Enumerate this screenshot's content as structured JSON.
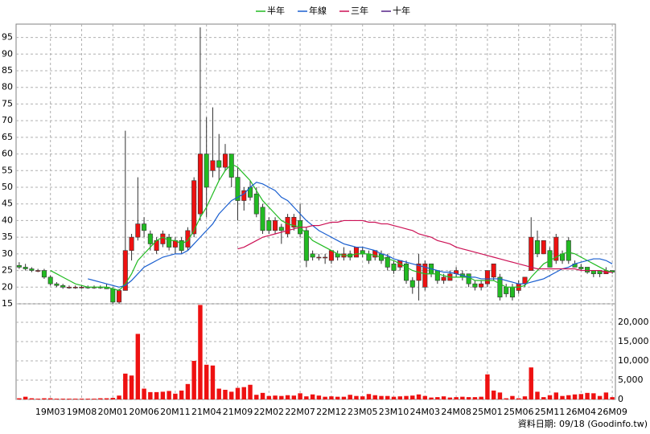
{
  "chart_data": {
    "type": "candlestick",
    "legend": [
      {
        "name": "半年",
        "color": "#22bb22"
      },
      {
        "name": "年線",
        "color": "#1a5fd0"
      },
      {
        "name": "三年",
        "color": "#cc1155"
      },
      {
        "name": "十年",
        "color": "#552288"
      }
    ],
    "categories": [
      null,
      null,
      null,
      null,
      null,
      "19M03",
      null,
      null,
      null,
      null,
      "19M08",
      null,
      null,
      null,
      null,
      "20M01",
      null,
      null,
      null,
      null,
      "20M06",
      null,
      null,
      null,
      null,
      "20M11",
      null,
      null,
      null,
      null,
      "21M04",
      null,
      null,
      null,
      null,
      "21M09",
      null,
      null,
      null,
      null,
      "22M02",
      null,
      null,
      null,
      null,
      "22M07",
      null,
      null,
      null,
      null,
      "22M12",
      null,
      null,
      null,
      null,
      "23M05",
      null,
      null,
      null,
      null,
      "23M10",
      null,
      null,
      null,
      null,
      "24M03",
      null,
      null,
      null,
      null,
      "24M08",
      null,
      null,
      null,
      null,
      "25M01",
      null,
      null,
      null,
      null,
      "25M06",
      null,
      null,
      null,
      null,
      "25M11",
      null,
      null,
      null,
      null,
      "26M04",
      null,
      null,
      null,
      null,
      "26M09"
    ],
    "open": [
      26.5,
      26,
      25.5,
      25,
      25,
      23,
      21,
      20.5,
      20,
      20,
      20,
      20,
      19.8,
      20,
      20,
      19.5,
      15.5,
      19,
      31,
      35,
      39,
      36,
      31,
      33,
      35,
      32,
      34,
      32,
      36,
      42,
      60,
      55,
      58,
      56,
      60,
      53,
      46,
      50,
      48,
      44,
      40,
      37,
      38,
      36,
      38,
      40,
      37,
      30,
      29,
      29,
      28,
      30,
      29,
      30,
      29,
      31,
      30,
      29,
      30,
      29,
      27,
      26,
      27,
      22,
      22,
      20,
      27,
      25,
      22,
      22,
      24,
      24,
      24,
      21,
      20,
      21,
      23,
      23,
      20,
      20,
      19,
      21,
      25,
      34,
      30,
      31,
      28,
      30,
      34,
      27,
      26,
      26,
      25,
      25,
      24,
      25
    ],
    "high": [
      27.5,
      27,
      26,
      25.5,
      25.5,
      23.5,
      21.5,
      21,
      20.5,
      20.5,
      20.5,
      20.5,
      20.5,
      20.5,
      21,
      20,
      19.5,
      67,
      36,
      53,
      41,
      37,
      35,
      37,
      36,
      35,
      35,
      38,
      53,
      98,
      71,
      74,
      66,
      63,
      60,
      56,
      50,
      52,
      50,
      45,
      41,
      41,
      39,
      42,
      42,
      45,
      38,
      31,
      30,
      30,
      31,
      31,
      32,
      31,
      32,
      32,
      31,
      31,
      31,
      30,
      28,
      28,
      28,
      23,
      30,
      28,
      27,
      25,
      24,
      25,
      26,
      25,
      24,
      22,
      22,
      25,
      27,
      24,
      21,
      21,
      22,
      23,
      41,
      37,
      34,
      32,
      36,
      31,
      35,
      28,
      27,
      26,
      25,
      25,
      26,
      25
    ],
    "low": [
      25.5,
      25,
      24.5,
      24.5,
      22.5,
      20.5,
      20,
      19.5,
      19.5,
      19.5,
      19.5,
      19.5,
      19.5,
      19.5,
      19.5,
      15,
      15,
      19,
      28,
      34,
      35,
      31,
      30,
      32,
      31,
      30,
      30,
      31,
      35,
      40,
      41,
      53,
      52,
      55,
      50,
      40,
      43,
      46,
      41,
      36,
      36,
      36,
      33,
      35,
      37,
      35,
      26,
      28,
      28,
      27,
      27,
      28,
      28,
      28,
      29,
      29,
      27,
      28,
      27,
      25,
      24,
      25,
      21,
      18,
      16,
      19,
      23,
      21,
      21,
      22,
      23,
      22,
      20,
      19,
      19,
      20,
      22,
      16,
      17,
      16,
      18,
      20,
      25,
      29,
      30,
      26,
      27,
      27,
      27,
      26,
      25,
      24,
      23,
      23,
      24,
      24
    ],
    "close": [
      26,
      25.5,
      25,
      25,
      23,
      21,
      20.5,
      20,
      20,
      20,
      20,
      19.8,
      20,
      19.8,
      19.5,
      15.5,
      19,
      31,
      35,
      39,
      37,
      33,
      34,
      36,
      32,
      34,
      31,
      37,
      52,
      60,
      50,
      58,
      56,
      60,
      53,
      46,
      49,
      47,
      42,
      37,
      37,
      40,
      37,
      41,
      41,
      36,
      28,
      29,
      29,
      29,
      31,
      29,
      30,
      29,
      32,
      30,
      28,
      31,
      28,
      26,
      25,
      28,
      22,
      20,
      27,
      27,
      24,
      22,
      23,
      24,
      25,
      23,
      21,
      20,
      21,
      25,
      27,
      17,
      18,
      17,
      21,
      23,
      35,
      30,
      34,
      26,
      35,
      28,
      28,
      26,
      25.5,
      24.5,
      24,
      24,
      25,
      24.5
    ],
    "volume": [
      300,
      700,
      300,
      200,
      300,
      300,
      200,
      200,
      200,
      200,
      200,
      200,
      200,
      300,
      300,
      400,
      1000,
      6700,
      6200,
      17000,
      2800,
      1900,
      1900,
      2000,
      2200,
      1500,
      2300,
      4000,
      10000,
      24500,
      9000,
      8800,
      2800,
      2500,
      2000,
      3000,
      3200,
      3800,
      1200,
      1700,
      900,
      1000,
      900,
      1100,
      1000,
      1600,
      800,
      1300,
      1000,
      700,
      800,
      700,
      700,
      1200,
      900,
      800,
      1400,
      1100,
      900,
      900,
      700,
      800,
      900,
      1000,
      1300,
      900,
      500,
      600,
      800,
      500,
      600,
      700,
      600,
      600,
      700,
      6500,
      2300,
      1800,
      300,
      900,
      300,
      800,
      8300,
      2000,
      600,
      1100,
      1800,
      900,
      1100,
      1300,
      1400,
      1700,
      1600,
      900,
      1800,
      600
    ],
    "up_color": "#ee1111",
    "down_color": "#22bb22",
    "volume_color": "#ee1111",
    "ma_series": [
      {
        "name": "半年",
        "color": "#22bb22",
        "values": [
          null,
          null,
          null,
          null,
          null,
          25,
          24,
          23,
          22,
          21,
          20.5,
          20,
          20,
          20,
          20,
          19.5,
          19,
          21,
          24,
          28,
          30,
          32,
          34,
          35,
          34,
          34,
          33,
          34,
          37,
          41,
          44,
          48,
          52,
          55,
          57,
          56,
          54,
          52,
          49,
          46,
          44,
          42,
          40,
          39,
          38.5,
          38,
          36,
          34,
          33,
          32,
          31,
          30,
          29.5,
          29.5,
          30,
          30,
          30,
          29.5,
          29,
          28.5,
          28,
          27,
          26,
          25,
          24.5,
          24,
          24,
          24,
          23.5,
          23,
          23,
          23,
          23,
          22,
          22,
          22,
          22,
          21,
          20,
          20,
          20,
          20.5,
          23,
          25,
          27,
          28,
          29,
          30,
          30.5,
          30,
          29,
          28,
          27,
          26,
          25,
          24.5
        ]
      },
      {
        "name": "年線",
        "color": "#1a5fd0",
        "values": [
          null,
          null,
          null,
          null,
          null,
          null,
          null,
          null,
          null,
          null,
          null,
          22.5,
          22,
          21.5,
          21,
          20.5,
          20,
          20.5,
          22,
          24,
          26,
          27,
          28,
          29,
          29.5,
          30,
          30,
          31,
          33,
          35,
          37,
          39,
          42,
          44,
          46,
          47,
          48,
          50,
          51.5,
          51,
          50,
          49,
          47,
          46,
          44,
          42,
          40,
          38.5,
          37,
          36,
          35,
          34,
          33,
          32.5,
          32,
          32,
          31.5,
          31,
          30,
          29.5,
          28.5,
          28,
          27.5,
          27,
          26.5,
          26,
          25.5,
          25,
          24.5,
          24.5,
          24,
          23.5,
          23,
          23,
          22.5,
          22.5,
          22.5,
          22.5,
          22,
          21.5,
          21,
          21,
          21.5,
          22,
          22.5,
          23.5,
          24.5,
          25.5,
          26,
          27,
          27.5,
          28,
          28.5,
          28.5,
          28,
          27
        ]
      },
      {
        "name": "三年",
        "color": "#cc1155",
        "values": [
          null,
          null,
          null,
          null,
          null,
          null,
          null,
          null,
          null,
          null,
          null,
          null,
          null,
          null,
          null,
          null,
          null,
          null,
          null,
          null,
          null,
          null,
          null,
          null,
          null,
          null,
          null,
          null,
          null,
          null,
          null,
          null,
          null,
          null,
          null,
          31.5,
          32,
          33,
          34,
          35,
          35.5,
          36,
          36.5,
          37,
          37.5,
          38,
          38,
          38.5,
          38.5,
          39,
          39.5,
          39.5,
          40,
          40,
          40,
          40,
          39.5,
          39.5,
          39,
          39,
          38.5,
          38,
          37.5,
          37,
          36,
          35.5,
          35,
          34,
          33.5,
          33,
          32,
          31.5,
          31,
          30.5,
          30,
          29.5,
          29,
          28.5,
          28,
          27.5,
          27,
          26.5,
          26,
          25.5,
          25.5,
          25.5,
          25.5,
          25.5,
          25.5,
          25.5,
          25,
          25,
          25,
          25,
          24.5,
          24.5
        ]
      }
    ],
    "ylim": [
      15,
      99
    ],
    "yticks": [
      15,
      20,
      25,
      30,
      35,
      40,
      45,
      50,
      55,
      60,
      65,
      70,
      75,
      80,
      85,
      90,
      95
    ],
    "y2lim": [
      0,
      24800
    ],
    "y2ticks": [
      0,
      {
        "value": 5000,
        "label": "5,000"
      },
      {
        "value": 10000,
        "label": "10,000"
      },
      {
        "value": 15000,
        "label": "15,000"
      },
      {
        "value": 20000,
        "label": "20,000"
      }
    ],
    "grid": true,
    "source_note": "資料日期: 09/18 (Goodinfo.tw)"
  }
}
